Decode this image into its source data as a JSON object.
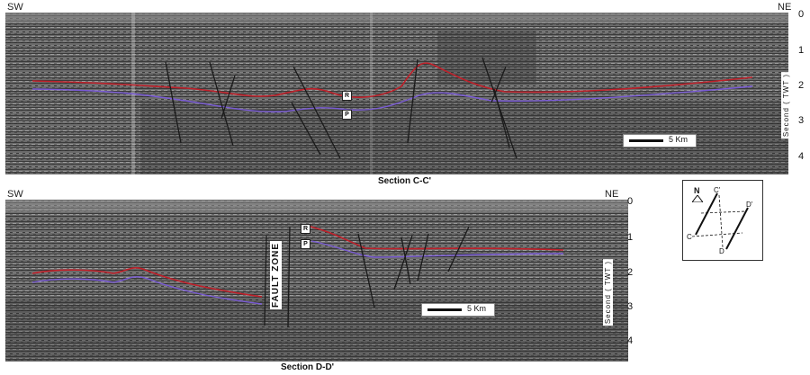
{
  "top_section": {
    "left_label": "SW",
    "right_label": "NE",
    "title": "Section C-C'",
    "axis_ticks": [
      "0",
      "1",
      "2",
      "3",
      "4"
    ],
    "axis_label": "Second ( TWT )",
    "horizon_labels": [
      "R",
      "P"
    ],
    "scale_label": "5 Km"
  },
  "bottom_section": {
    "left_label": "SW",
    "right_label": "NE",
    "title": "Section D-D'",
    "axis_ticks": [
      "0",
      "1",
      "2",
      "3",
      "4"
    ],
    "axis_label": "Second ( TWT )",
    "horizon_labels": [
      "R",
      "P"
    ],
    "scale_label": "5 Km",
    "fault_zone_label": "FAULT ZONE"
  },
  "key_map": {
    "north_label": "N",
    "line_labels": [
      "C",
      "C'",
      "D",
      "D'"
    ]
  },
  "colors": {
    "horizon_R": "#c0202a",
    "horizon_P": "#7a5bd6",
    "fault": "#1a1a1a"
  }
}
